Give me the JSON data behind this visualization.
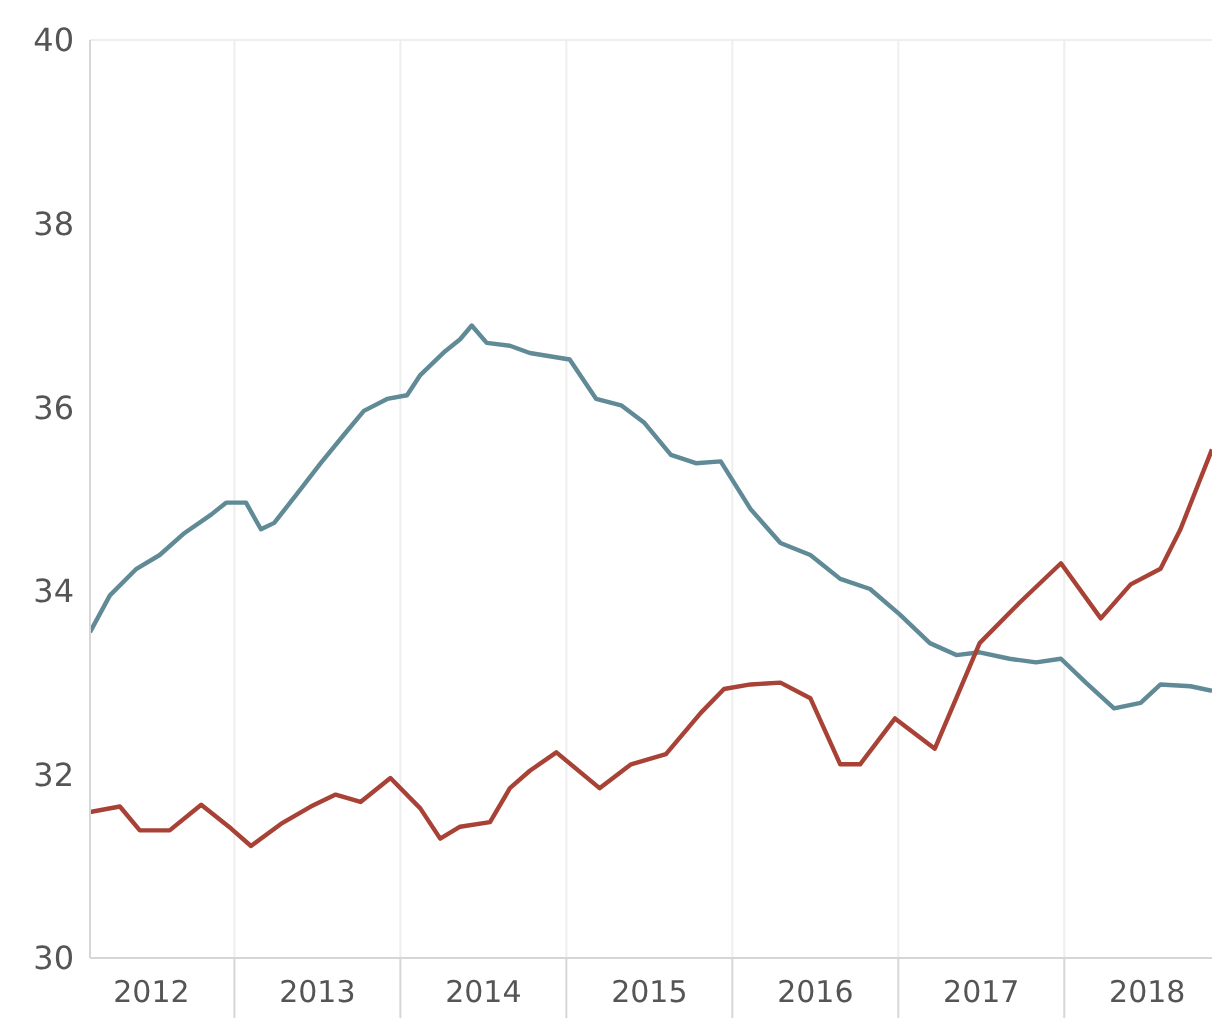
{
  "chart_data": {
    "type": "line",
    "xlim": [
      2012.13,
      2018.89
    ],
    "ylim": [
      30,
      40
    ],
    "yticks": [
      30,
      32,
      34,
      36,
      38,
      40
    ],
    "xticks": [
      {
        "value": 2012.5,
        "label": "2012"
      },
      {
        "value": 2013,
        "label": null
      },
      {
        "value": 2013.5,
        "label": "2013"
      },
      {
        "value": 2014,
        "label": null
      },
      {
        "value": 2014.5,
        "label": "2014"
      },
      {
        "value": 2015,
        "label": null
      },
      {
        "value": 2015.5,
        "label": "2015"
      },
      {
        "value": 2016,
        "label": null
      },
      {
        "value": 2016.5,
        "label": "2016"
      },
      {
        "value": 2017,
        "label": null
      },
      {
        "value": 2017.5,
        "label": "2017"
      },
      {
        "value": 2018,
        "label": null
      },
      {
        "value": 2018.5,
        "label": "2018"
      }
    ],
    "grid": true,
    "line_style": "solid",
    "series": [
      {
        "color": "#5f8a96",
        "x": [
          2012.13,
          2012.25,
          2012.41,
          2012.55,
          2012.7,
          2012.86,
          2012.95,
          2013.07,
          2013.16,
          2013.24,
          2013.37,
          2013.52,
          2013.66,
          2013.78,
          2013.92,
          2014.04,
          2014.12,
          2014.27,
          2014.36,
          2014.43,
          2014.52,
          2014.66,
          2014.78,
          2015.02,
          2015.18,
          2015.33,
          2015.47,
          2015.63,
          2015.78,
          2015.93,
          2016.11,
          2016.29,
          2016.47,
          2016.65,
          2016.83,
          2017.01,
          2017.19,
          2017.35,
          2017.49,
          2017.67,
          2017.83,
          2017.98,
          2018.13,
          2018.3,
          2018.46,
          2018.58,
          2018.76,
          2018.89
        ],
        "values": [
          33.55,
          33.95,
          34.24,
          34.39,
          34.63,
          34.83,
          34.96,
          34.96,
          34.67,
          34.74,
          35.04,
          35.39,
          35.7,
          35.96,
          36.09,
          36.13,
          36.35,
          36.61,
          36.74,
          36.89,
          36.7,
          36.67,
          36.59,
          36.52,
          36.09,
          36.02,
          35.83,
          35.48,
          35.39,
          35.41,
          34.89,
          34.52,
          34.39,
          34.13,
          34.02,
          33.74,
          33.43,
          33.3,
          33.33,
          33.26,
          33.22,
          33.26,
          33.0,
          32.72,
          32.78,
          32.98,
          32.96,
          32.91
        ]
      },
      {
        "color": "#a84236",
        "x": [
          2012.13,
          2012.31,
          2012.43,
          2012.61,
          2012.8,
          2012.98,
          2013.1,
          2013.28,
          2013.46,
          2013.61,
          2013.76,
          2013.94,
          2014.12,
          2014.24,
          2014.36,
          2014.54,
          2014.66,
          2014.78,
          2014.94,
          2015.2,
          2015.39,
          2015.6,
          2015.81,
          2015.95,
          2016.11,
          2016.29,
          2016.47,
          2016.65,
          2016.77,
          2016.98,
          2017.22,
          2017.49,
          2017.73,
          2017.98,
          2018.22,
          2018.4,
          2018.58,
          2018.7,
          2018.82,
          2018.89
        ],
        "values": [
          31.59,
          31.65,
          31.39,
          31.39,
          31.67,
          31.41,
          31.22,
          31.46,
          31.65,
          31.78,
          31.7,
          31.96,
          31.63,
          31.3,
          31.43,
          31.48,
          31.85,
          32.04,
          32.24,
          31.85,
          32.11,
          32.22,
          32.67,
          32.93,
          32.98,
          33.0,
          32.83,
          32.11,
          32.11,
          32.61,
          32.28,
          33.43,
          33.87,
          34.3,
          33.7,
          34.07,
          34.24,
          34.67,
          35.22,
          35.54
        ]
      }
    ]
  }
}
